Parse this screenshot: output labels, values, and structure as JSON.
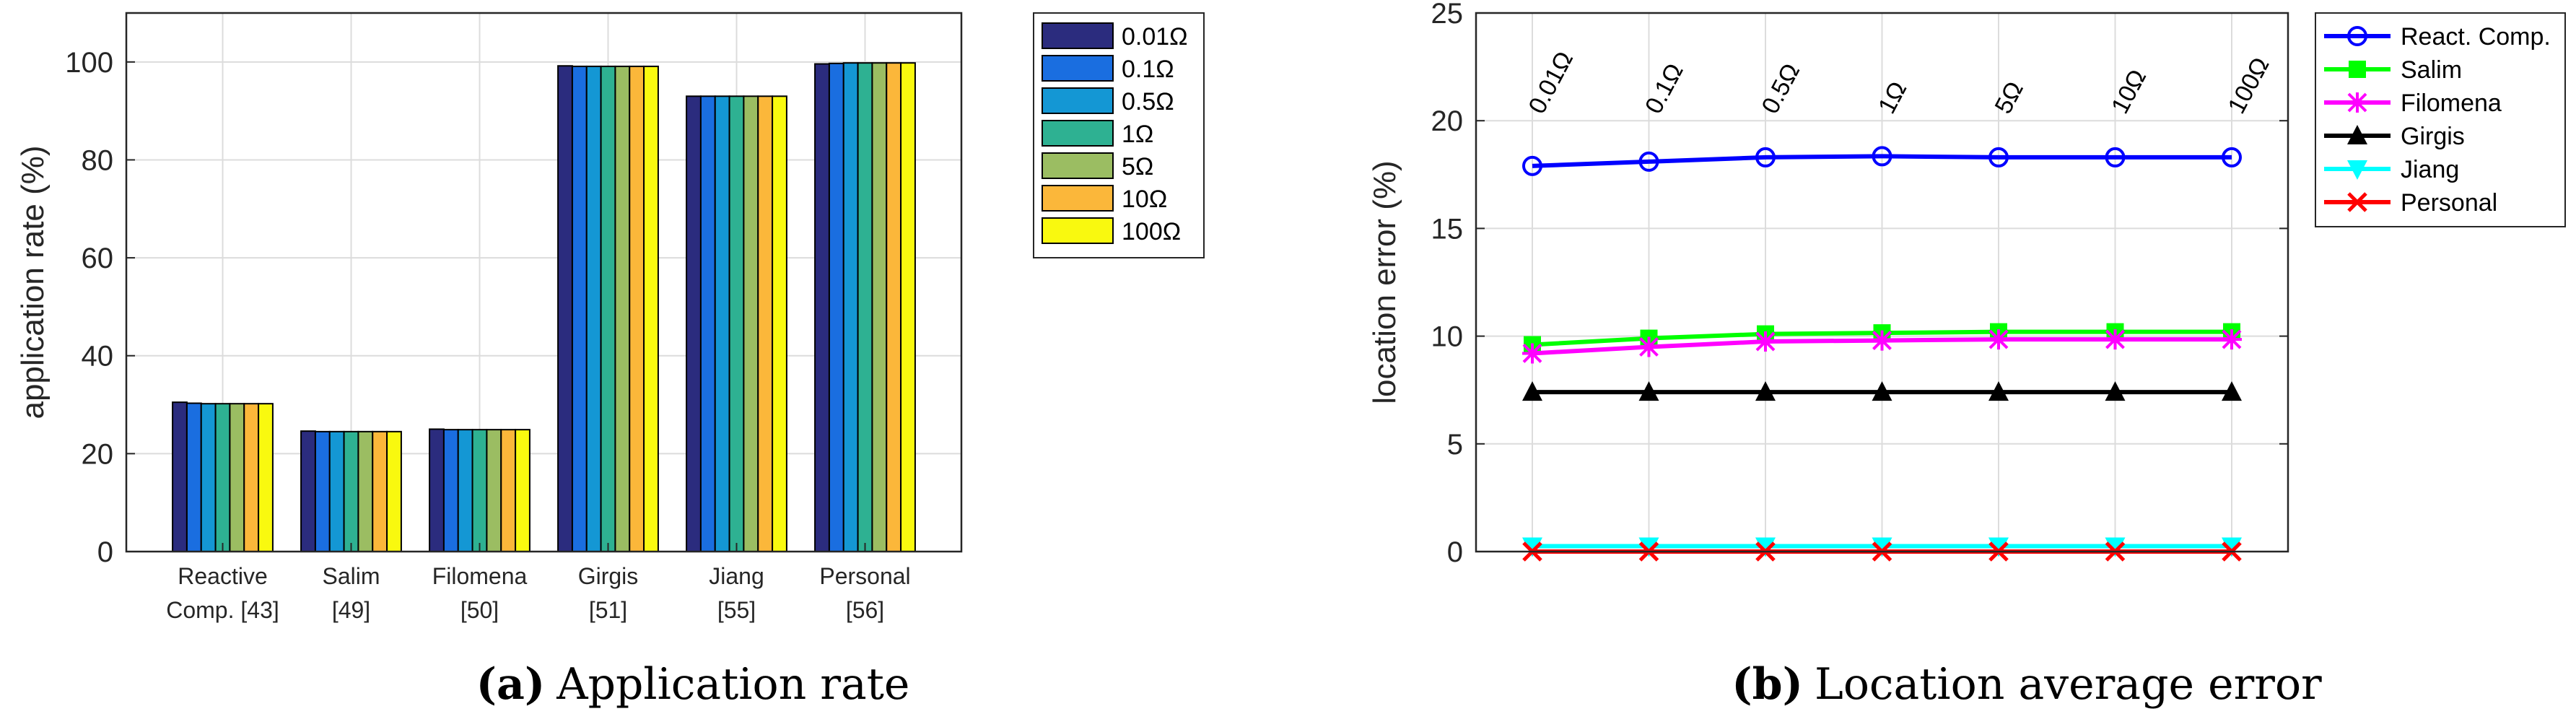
{
  "colors": {
    "resistances": [
      "#2b2c7e",
      "#1a6ee0",
      "#1497d4",
      "#2eb192",
      "#9bbd62",
      "#fbb73a",
      "#f9f90f"
    ],
    "methods": [
      "#0000ff",
      "#00ff00",
      "#ff00ff",
      "#000000",
      "#00ffff",
      "#ff0000"
    ],
    "grid": "#dcdcdc",
    "axis": "#262626"
  },
  "captions": {
    "a_label": "(a)",
    "a_text": "Application rate",
    "b_label": "(b)",
    "b_text": "Location average error"
  },
  "chart_data": [
    {
      "type": "bar",
      "title": "Application rate",
      "ylabel": "application rate (%)",
      "xlabel": "",
      "ylim": [
        0,
        110
      ],
      "yticks": [
        0,
        20,
        40,
        60,
        80,
        100
      ],
      "categories": [
        [
          "Reactive",
          "Comp. [43]"
        ],
        [
          "Salim",
          "[49]"
        ],
        [
          "Filomena",
          "[50]"
        ],
        [
          "Girgis",
          "[51]"
        ],
        [
          "Jiang",
          "[55]"
        ],
        [
          "Personal",
          "[56]"
        ]
      ],
      "legend_position": "outside-top-right",
      "series": [
        {
          "name": "0.01Ω",
          "values": [
            30.5,
            24.6,
            25.0,
            99.2,
            93.0,
            99.6
          ]
        },
        {
          "name": "0.1Ω",
          "values": [
            30.3,
            24.5,
            24.9,
            99.1,
            93.0,
            99.7
          ]
        },
        {
          "name": "0.5Ω",
          "values": [
            30.2,
            24.5,
            24.9,
            99.1,
            93.0,
            99.8
          ]
        },
        {
          "name": "1Ω",
          "values": [
            30.2,
            24.5,
            24.9,
            99.1,
            93.0,
            99.8
          ]
        },
        {
          "name": "5Ω",
          "values": [
            30.2,
            24.5,
            24.9,
            99.1,
            93.0,
            99.8
          ]
        },
        {
          "name": "10Ω",
          "values": [
            30.2,
            24.5,
            24.9,
            99.1,
            93.0,
            99.8
          ]
        },
        {
          "name": "100Ω",
          "values": [
            30.2,
            24.5,
            24.9,
            99.1,
            93.0,
            99.8
          ]
        }
      ],
      "grid": true
    },
    {
      "type": "line",
      "title": "Location average error",
      "ylabel": "location error (%)",
      "xlabel": "",
      "x": [
        "0.01Ω",
        "0.1Ω",
        "0.5Ω",
        "1Ω",
        "5Ω",
        "10Ω",
        "100Ω"
      ],
      "xtick_labels_shown": false,
      "annotations": [
        "0.01Ω",
        "0.1Ω",
        "0.5Ω",
        "1Ω",
        "5Ω",
        "10Ω",
        "100Ω"
      ],
      "ylim": [
        0,
        25
      ],
      "yticks": [
        0,
        5,
        10,
        15,
        20,
        25
      ],
      "legend_position": "outside-top-right",
      "series": [
        {
          "name": "React. Comp.",
          "marker": "circle",
          "values": [
            17.9,
            18.1,
            18.3,
            18.35,
            18.3,
            18.3,
            18.3
          ]
        },
        {
          "name": "Salim",
          "marker": "square",
          "values": [
            9.6,
            9.9,
            10.1,
            10.15,
            10.2,
            10.2,
            10.2
          ]
        },
        {
          "name": "Filomena",
          "marker": "asterisk",
          "values": [
            9.2,
            9.5,
            9.75,
            9.8,
            9.85,
            9.85,
            9.85
          ]
        },
        {
          "name": "Girgis",
          "marker": "triangle-up",
          "values": [
            7.4,
            7.4,
            7.4,
            7.4,
            7.4,
            7.4,
            7.4
          ]
        },
        {
          "name": "Jiang",
          "marker": "triangle-down",
          "values": [
            0.25,
            0.25,
            0.25,
            0.25,
            0.25,
            0.25,
            0.25
          ]
        },
        {
          "name": "Personal",
          "marker": "x",
          "values": [
            0.0,
            0.0,
            0.0,
            0.0,
            0.0,
            0.0,
            0.0
          ]
        }
      ],
      "grid": true
    }
  ]
}
